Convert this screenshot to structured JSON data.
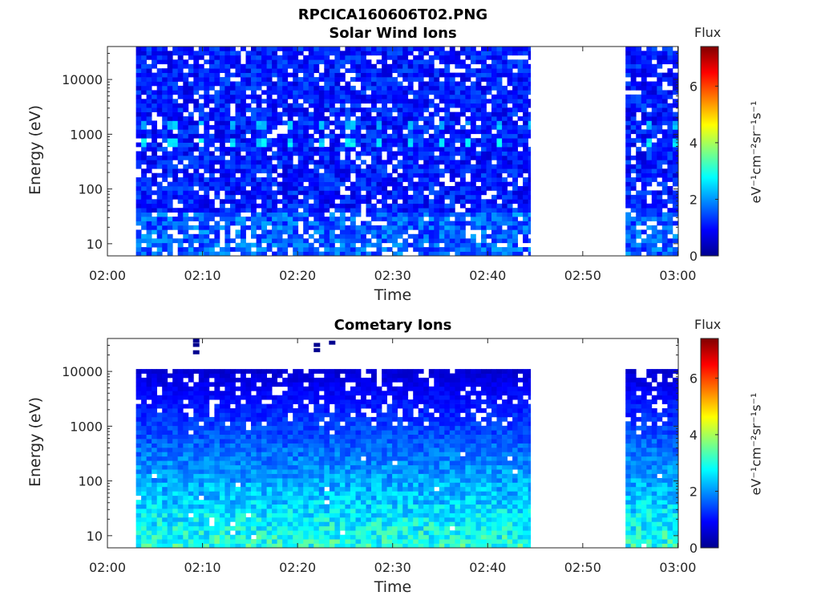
{
  "figure": {
    "title": "RPCICA160606T02.PNG"
  },
  "colors": {
    "background": "#ffffff",
    "axis": "#262626",
    "colormap": "jet"
  },
  "chart_data": [
    {
      "type": "heatmap",
      "title": "Solar Wind Ions",
      "xlabel": "Time",
      "ylabel": "Energy (eV)",
      "x_tick_labels": [
        "02:00",
        "02:10",
        "02:20",
        "02:30",
        "02:40",
        "02:50",
        "03:00"
      ],
      "y_tick_labels": [
        "10",
        "100",
        "1000",
        "10000"
      ],
      "y_scale": "log",
      "ylim": [
        6,
        40000
      ],
      "xlim": [
        "02:00",
        "03:00"
      ],
      "colorbar": {
        "label": "Flux",
        "units": "eV⁻¹cm⁻²sr⁻¹s⁻¹",
        "range": [
          0,
          7.4
        ],
        "tick_labels": [
          "0",
          "2",
          "4",
          "6"
        ]
      },
      "data_segments": [
        [
          "02:03",
          "02:44:30"
        ],
        [
          "02:54:30",
          "03:00"
        ]
      ],
      "notes": "Flux mostly 0.3–1.8; enhanced bands near 700 eV and 1500 eV (~2.5) and at lowest energies (~1.5)"
    },
    {
      "type": "heatmap",
      "title": "Cometary Ions",
      "xlabel": "Time",
      "ylabel": "Energy (eV)",
      "x_tick_labels": [
        "02:00",
        "02:10",
        "02:20",
        "02:30",
        "02:40",
        "02:50",
        "03:00"
      ],
      "y_tick_labels": [
        "10",
        "100",
        "1000",
        "10000"
      ],
      "y_scale": "log",
      "ylim": [
        6,
        40000
      ],
      "xlim": [
        "02:00",
        "03:00"
      ],
      "colorbar": {
        "label": "Flux",
        "units": "eV⁻¹cm⁻²sr⁻¹s⁻¹",
        "range": [
          0,
          7.4
        ],
        "tick_labels": [
          "0",
          "2",
          "4",
          "6"
        ]
      },
      "data_segments": [
        [
          "02:03",
          "02:44:30"
        ],
        [
          "02:54:30",
          "03:00"
        ]
      ],
      "notes": "Flux increases toward low energies, peaking ~3–3.5 below 20 eV; sparse low flux above 10000 eV"
    }
  ]
}
